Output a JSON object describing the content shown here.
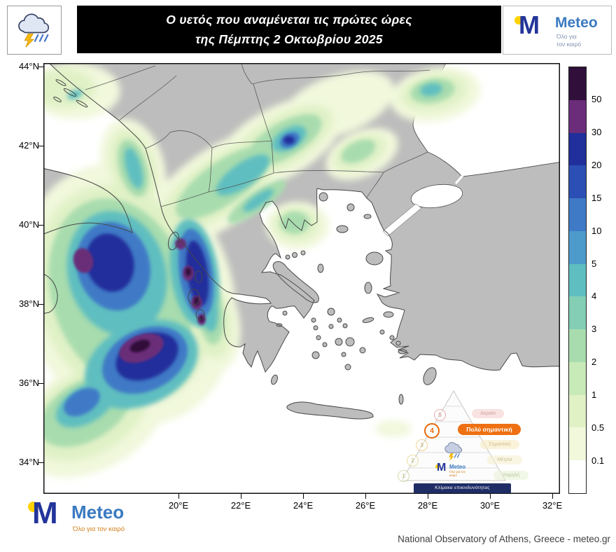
{
  "header": {
    "title_line1": "Ο υετός που αναμένεται τις πρώτες ώρες",
    "title_line2": "της Πέμπτης 2 Οκτωβρίου 2025"
  },
  "brand": {
    "m": "M",
    "name": "Meteo",
    "tagline_l1": "Όλο για",
    "tagline_l2": "τον καιρό",
    "tagline": "Όλο για τον καιρό"
  },
  "axes": {
    "lat_labels": [
      "44°N",
      "42°N",
      "40°N",
      "38°N",
      "36°N",
      "34°N"
    ],
    "lon_labels": [
      "20°E",
      "22°E",
      "24°E",
      "26°E",
      "28°E",
      "30°E",
      "32°E"
    ]
  },
  "colorbar": {
    "labels_top_to_bottom": [
      "50",
      "30",
      "20",
      "15",
      "10",
      "5",
      "4",
      "3",
      "2",
      "1",
      "0.5",
      "0.1"
    ],
    "colors_top_to_bottom": [
      "#30103a",
      "#6b2d79",
      "#202f9b",
      "#2c4fb5",
      "#3f7ac6",
      "#4d9bcb",
      "#5fbec0",
      "#83ceb4",
      "#a8dcae",
      "#c8eab8",
      "#e0f1c6",
      "#f1f8dc",
      "#ffffff"
    ]
  },
  "hazard_scale": {
    "levels": [
      {
        "num": "5",
        "label": "Ακραία",
        "active": false
      },
      {
        "num": "4",
        "label": "Πολύ σημαντική",
        "active": true
      },
      {
        "num": "3",
        "label": "Σημαντική",
        "active": false
      },
      {
        "num": "2",
        "label": "Μέτρια",
        "active": false
      },
      {
        "num": "1",
        "label": "Χαμηλή",
        "active": false
      }
    ],
    "caption": "Κλίμακα επικινδυνότητας"
  },
  "footer": {
    "credit": "National Observatory of Athens, Greece - meteo.gr"
  }
}
